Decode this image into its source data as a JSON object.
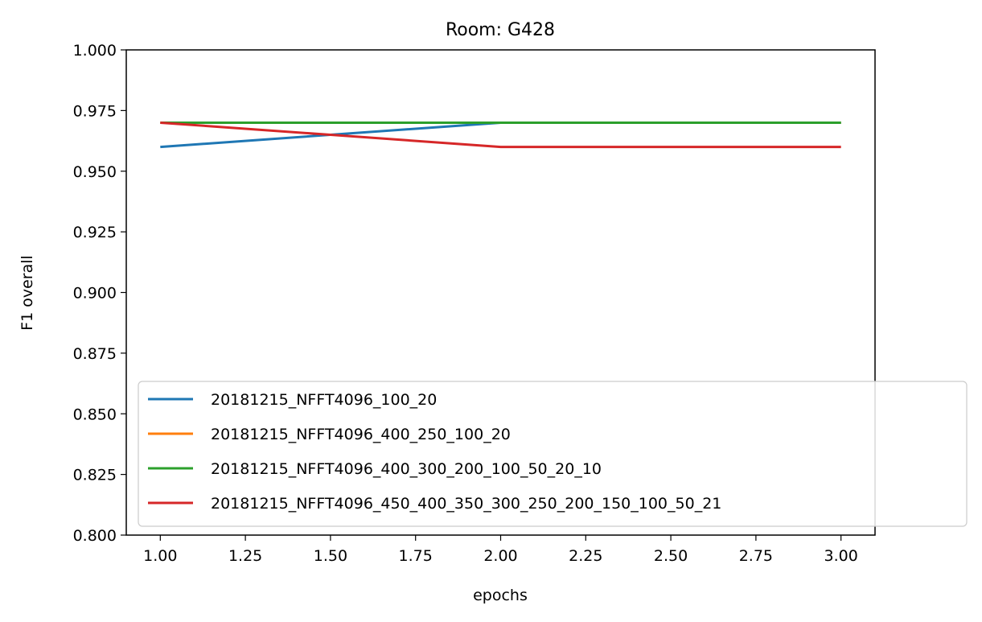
{
  "chart_data": {
    "type": "line",
    "title": "Room: G428",
    "xlabel": "epochs",
    "ylabel": "F1 overall",
    "xlim": [
      0.9,
      3.1
    ],
    "ylim": [
      0.8,
      1.0
    ],
    "x_ticks": [
      "1.00",
      "1.25",
      "1.50",
      "1.75",
      "2.00",
      "2.25",
      "2.50",
      "2.75",
      "3.00"
    ],
    "y_ticks": [
      "0.800",
      "0.825",
      "0.850",
      "0.875",
      "0.900",
      "0.925",
      "0.950",
      "0.975",
      "1.000"
    ],
    "grid": false,
    "legend_position": "lower-right",
    "x": [
      1,
      2,
      3
    ],
    "series": [
      {
        "name": "20181215_NFFT4096_100_20",
        "color": "#1f77b4",
        "values": [
          0.96,
          0.97,
          0.97
        ]
      },
      {
        "name": "20181215_NFFT4096_400_250_100_20",
        "color": "#ff7f0e",
        "values": [
          0.97,
          0.97,
          0.97
        ]
      },
      {
        "name": "20181215_NFFT4096_400_300_200_100_50_20_10",
        "color": "#2ca02c",
        "values": [
          0.97,
          0.97,
          0.97
        ]
      },
      {
        "name": "20181215_NFFT4096_450_400_350_300_250_200_150_100_50_21",
        "color": "#d62728",
        "values": [
          0.97,
          0.96,
          0.96
        ]
      }
    ]
  }
}
